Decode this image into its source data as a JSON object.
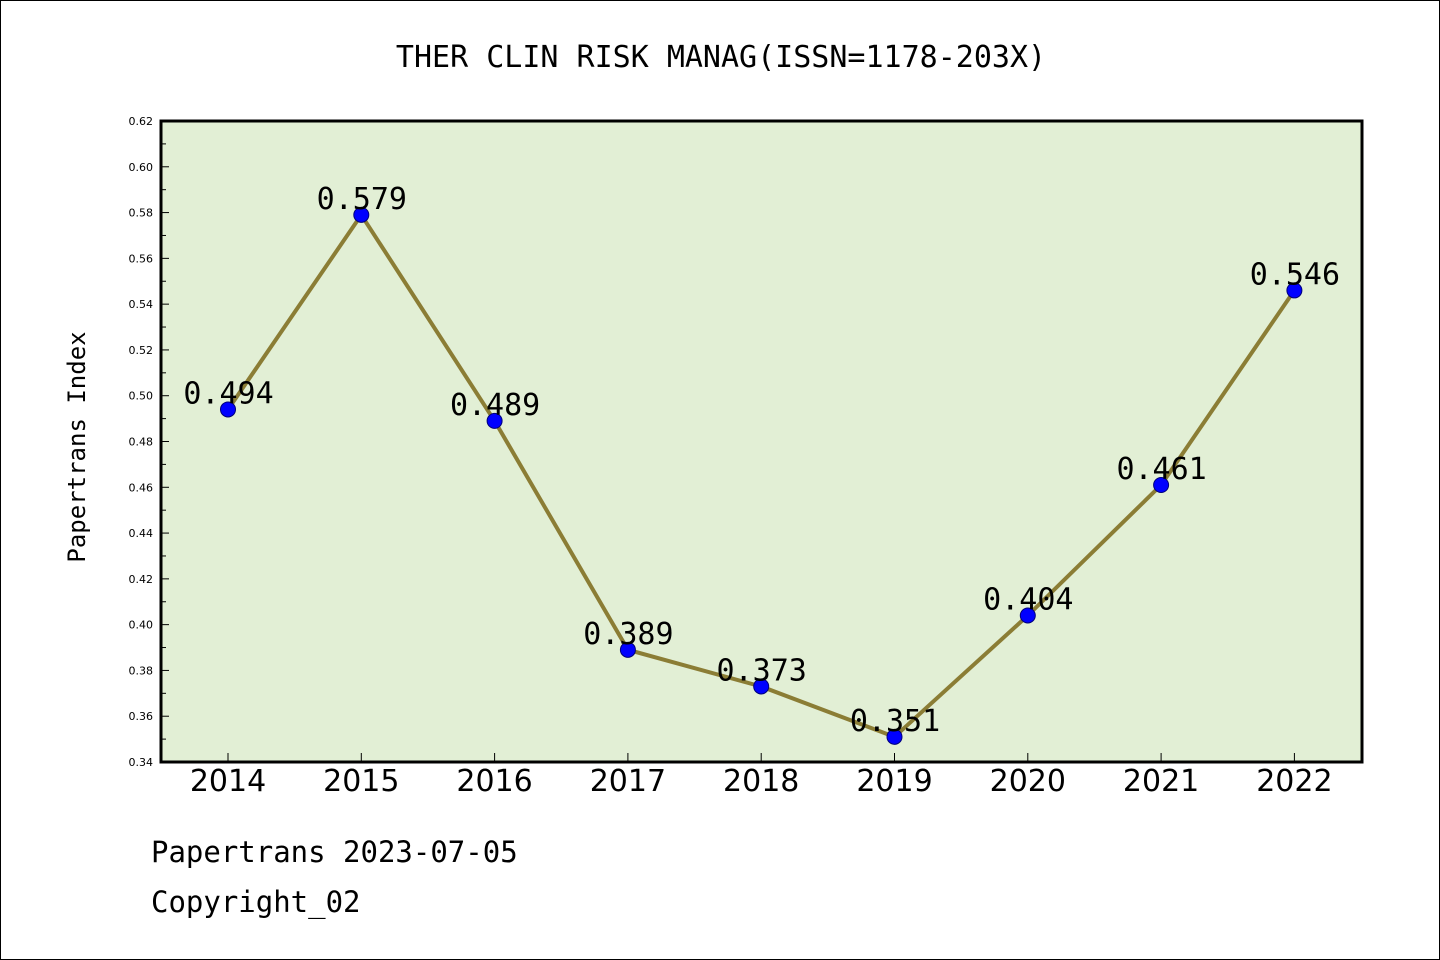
{
  "chart_data": {
    "type": "line",
    "title": "THER CLIN RISK MANAG(ISSN=1178-203X)",
    "xlabel": "",
    "ylabel": "Papertrans Index",
    "categories": [
      "2014",
      "2015",
      "2016",
      "2017",
      "2018",
      "2019",
      "2020",
      "2021",
      "2022"
    ],
    "series": [
      {
        "values": [
          0.494,
          0.579,
          0.489,
          0.389,
          0.373,
          0.351,
          0.404,
          0.461,
          0.546
        ],
        "labels": [
          "0.494",
          "0.579",
          "0.489",
          "0.389",
          "0.373",
          "0.351",
          "0.404",
          "0.461",
          "0.546"
        ]
      }
    ],
    "ylim": [
      0.34,
      0.62
    ],
    "ytick_labels": [
      "0.34",
      "0.36",
      "0.38",
      "0.40",
      "0.42",
      "0.44",
      "0.46",
      "0.48",
      "0.50",
      "0.52",
      "0.54",
      "0.56",
      "0.58",
      "0.60",
      "0.62"
    ],
    "grid": false,
    "colors": {
      "plot_background": "#e2efd5",
      "line": "#8b7d35",
      "marker": "#0000ff"
    }
  },
  "footer": {
    "source": "Papertrans 2023-07-05",
    "copyright": "Copyright_02"
  }
}
